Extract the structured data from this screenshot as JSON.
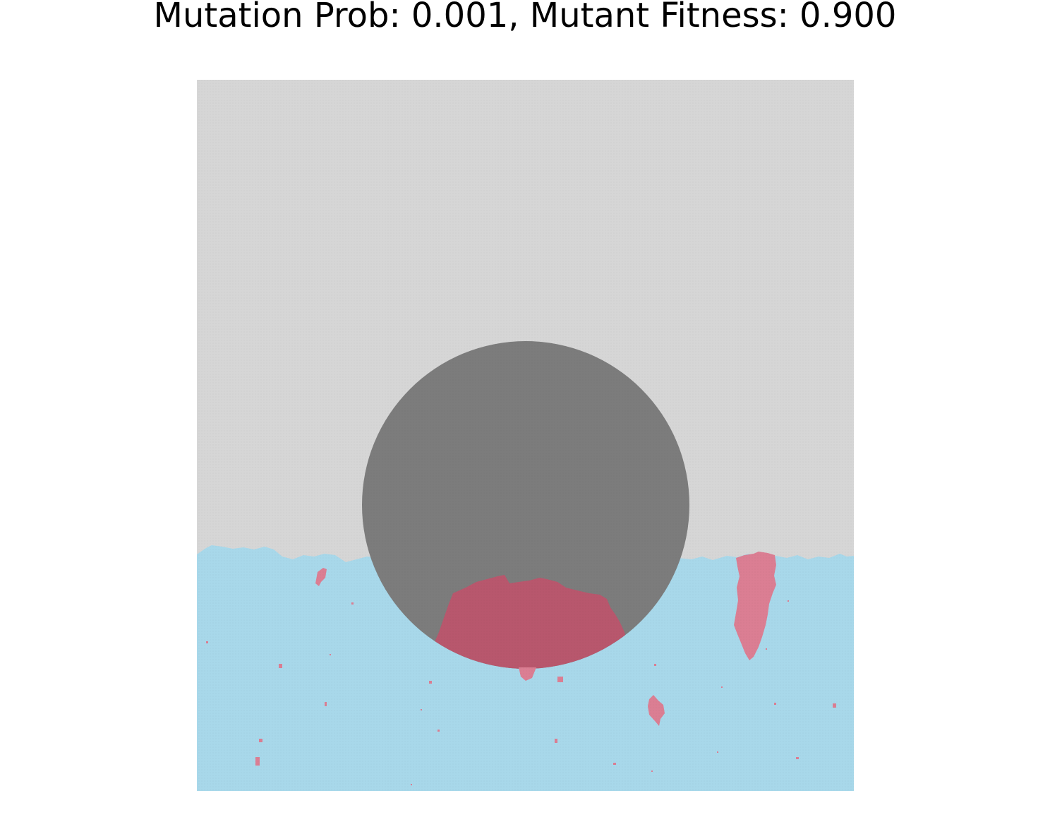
{
  "figure": {
    "title": "Mutation Prob: 0.001, Mutant Fitness: 0.900"
  },
  "colors": {
    "background": "#ffffff",
    "empty_region": "#d6d6d6",
    "obstacle_disc": "#7c7c7c",
    "wild_type": "#a8d8ea",
    "mutant": "#db7e93",
    "mutant_on_disc": "#b8576d"
  }
}
